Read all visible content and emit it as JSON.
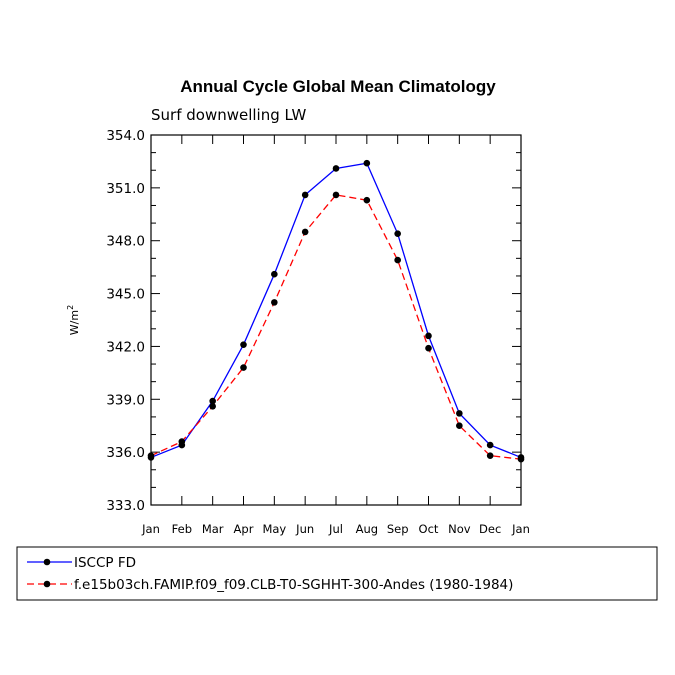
{
  "chart_data": {
    "type": "line",
    "title": "Annual Cycle Global Mean Climatology",
    "subtitle": "Surf downwelling LW",
    "xlabel": "",
    "ylabel": "W/m",
    "ylabel_superscript": "2",
    "categories": [
      "Jan",
      "Feb",
      "Mar",
      "Apr",
      "May",
      "Jun",
      "Jul",
      "Aug",
      "Sep",
      "Oct",
      "Nov",
      "Dec",
      "Jan"
    ],
    "ylim": [
      333.0,
      354.0
    ],
    "yticks": [
      "333.0",
      "336.0",
      "339.0",
      "342.0",
      "345.0",
      "348.0",
      "351.0",
      "354.0"
    ],
    "series": [
      {
        "name": "ISCCP FD",
        "color": "#0000ff",
        "dash": "solid",
        "values": [
          335.7,
          336.4,
          338.9,
          342.1,
          346.1,
          350.6,
          352.1,
          352.4,
          348.4,
          342.6,
          338.2,
          336.4,
          335.7
        ]
      },
      {
        "name": "f.e15b03ch.FAMIP.f09_f09.CLB-T0-SGHHT-300-Andes (1980-1984)",
        "color": "#ff0000",
        "dash": "dashed",
        "values": [
          335.8,
          336.6,
          338.6,
          340.8,
          344.5,
          348.5,
          350.6,
          350.3,
          346.9,
          341.9,
          337.5,
          335.8,
          335.6
        ]
      }
    ],
    "legend_position": "bottom"
  }
}
